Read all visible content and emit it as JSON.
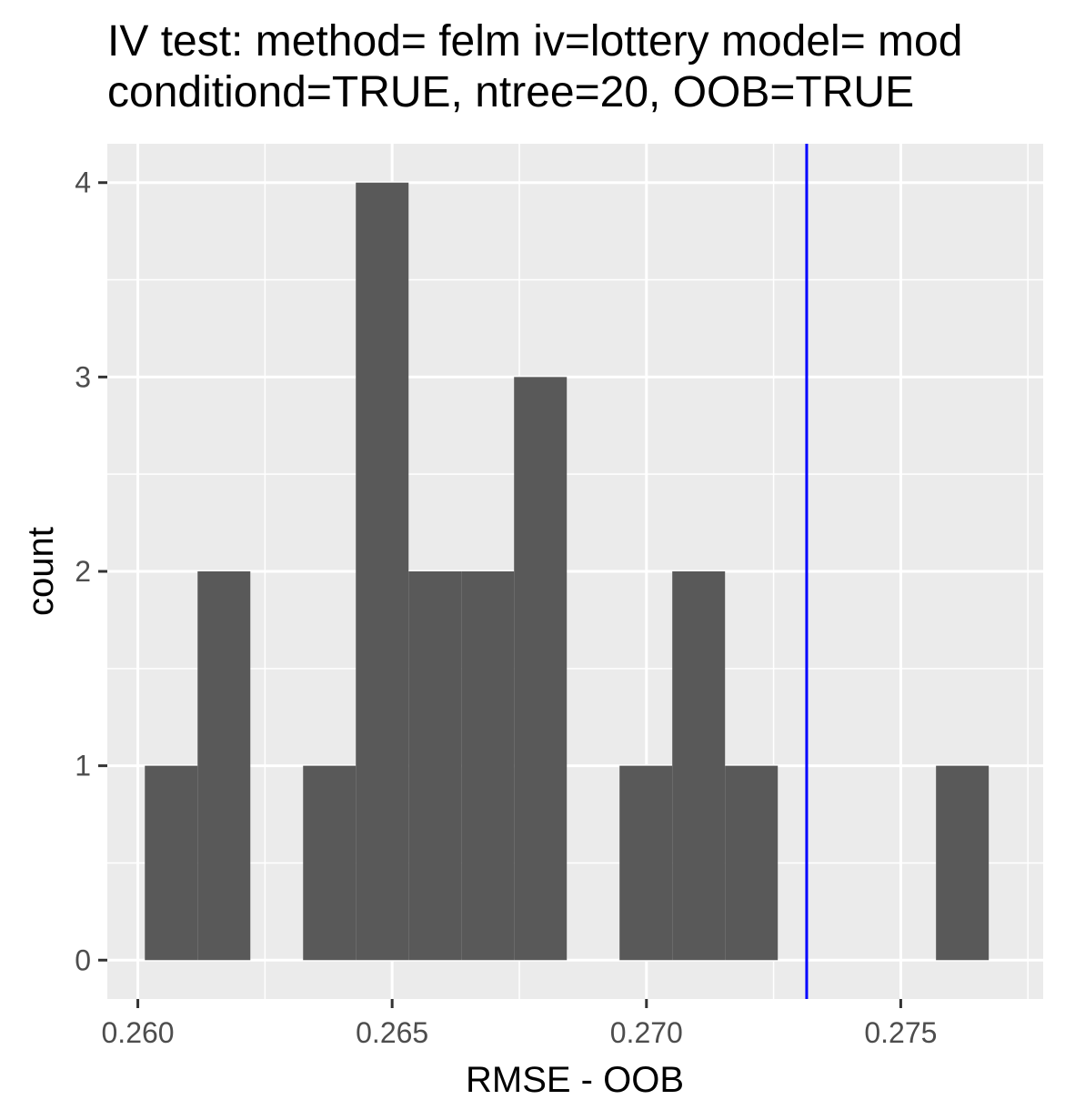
{
  "chart_data": {
    "type": "bar",
    "title_lines": [
      "IV test: method= felm iv=lottery model= mod",
      "conditiond=TRUE, ntree=20, OOB=TRUE"
    ],
    "xlabel": "RMSE - OOB",
    "ylabel": "count",
    "xlim": [
      0.2594,
      0.2778
    ],
    "ylim": [
      -0.2,
      4.2
    ],
    "x_ticks": [
      0.26,
      0.265,
      0.27,
      0.275
    ],
    "x_tick_labels": [
      "0.260",
      "0.265",
      "0.270",
      "0.275"
    ],
    "y_ticks": [
      0,
      1,
      2,
      3,
      4
    ],
    "y_tick_labels": [
      "0",
      "1",
      "2",
      "3",
      "4"
    ],
    "bin_width": 0.001037,
    "bins": [
      {
        "x0": 0.260138,
        "x1": 0.261175,
        "count": 1
      },
      {
        "x0": 0.261175,
        "x1": 0.262212,
        "count": 2
      },
      {
        "x0": 0.262212,
        "x1": 0.263249,
        "count": 0
      },
      {
        "x0": 0.263249,
        "x1": 0.264286,
        "count": 1
      },
      {
        "x0": 0.264286,
        "x1": 0.265323,
        "count": 4
      },
      {
        "x0": 0.265323,
        "x1": 0.26636,
        "count": 2
      },
      {
        "x0": 0.26636,
        "x1": 0.267397,
        "count": 2
      },
      {
        "x0": 0.267397,
        "x1": 0.268434,
        "count": 3
      },
      {
        "x0": 0.268434,
        "x1": 0.269471,
        "count": 0
      },
      {
        "x0": 0.269471,
        "x1": 0.270508,
        "count": 1
      },
      {
        "x0": 0.270508,
        "x1": 0.271545,
        "count": 2
      },
      {
        "x0": 0.271545,
        "x1": 0.272582,
        "count": 1
      },
      {
        "x0": 0.272582,
        "x1": 0.273619,
        "count": 0
      },
      {
        "x0": 0.273619,
        "x1": 0.274656,
        "count": 0
      },
      {
        "x0": 0.274656,
        "x1": 0.275693,
        "count": 0
      },
      {
        "x0": 0.275693,
        "x1": 0.27673,
        "count": 1
      }
    ],
    "reference_line": {
      "x": 0.27315,
      "color": "#0000ff"
    },
    "colors": {
      "panel": "#ebebeb",
      "grid": "#ffffff",
      "bar": "#595959"
    },
    "grid": true,
    "legend": "none"
  }
}
